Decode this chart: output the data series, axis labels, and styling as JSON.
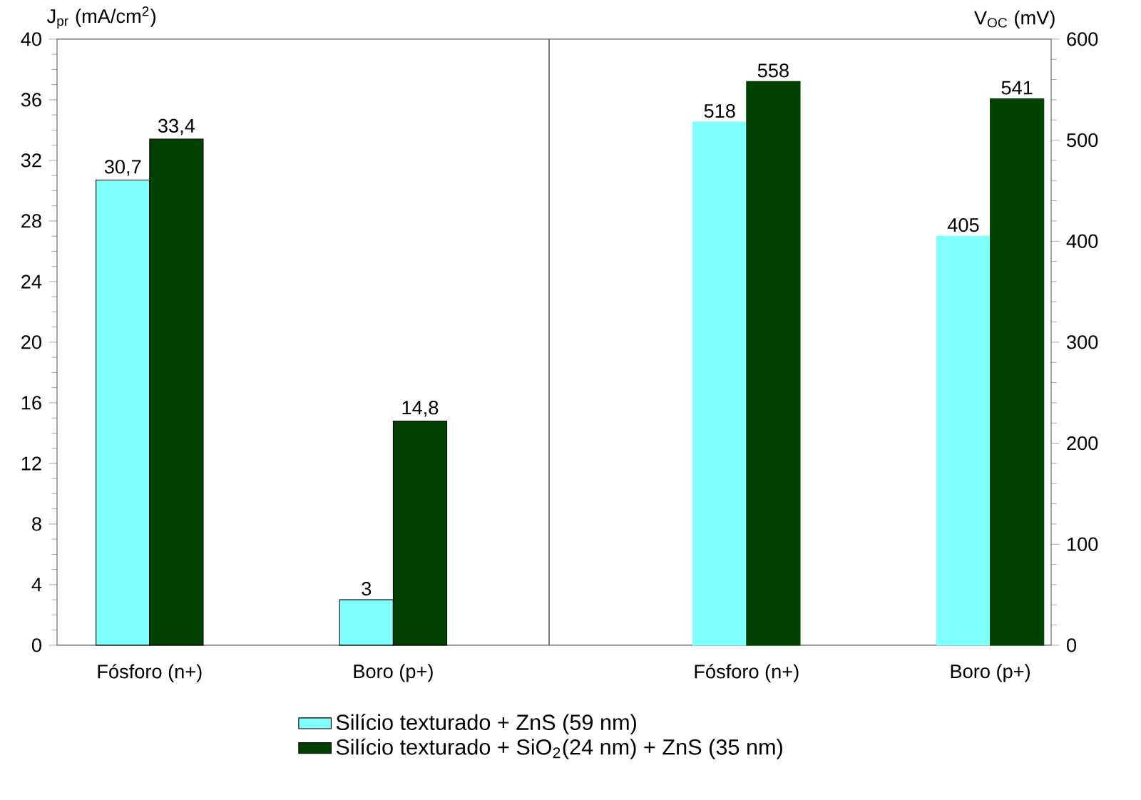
{
  "chart_data": [
    {
      "type": "bar",
      "categories": [
        "Fósforo (n+)",
        "Boro (p+)"
      ],
      "ylabel": "J$_{pr}$ (mA/cm$^{2}$)",
      "ylim": [
        0,
        40
      ],
      "yticks": [
        0,
        4,
        8,
        12,
        16,
        20,
        24,
        28,
        32,
        36,
        40
      ],
      "legend": "bottom",
      "series": [
        {
          "name": "Silício texturado + ZnS (59 nm)",
          "color": "#80ffff",
          "values": [
            30.7,
            3
          ],
          "value_labels": [
            "30,7",
            "3"
          ]
        },
        {
          "name": "Silício texturado + SiO$_{2}$(24 nm) + ZnS (35 nm)",
          "color": "#004000",
          "values": [
            33.4,
            14.8
          ],
          "value_labels": [
            "33,4",
            "14,8"
          ]
        }
      ]
    },
    {
      "type": "bar",
      "categories": [
        "Fósforo (n+)",
        "Boro (p+)"
      ],
      "y2label": "V$_{OC}$ (mV)",
      "y2lim": [
        0,
        600
      ],
      "y2ticks": [
        0,
        100,
        200,
        300,
        400,
        500,
        600
      ],
      "series": [
        {
          "color": "#80ffff",
          "values": [
            518,
            405
          ],
          "axis": "y2",
          "data_labels": true
        },
        {
          "color": "#004000",
          "values": [
            558,
            541
          ],
          "axis": "y2",
          "data_labels": true
        }
      ]
    }
  ]
}
